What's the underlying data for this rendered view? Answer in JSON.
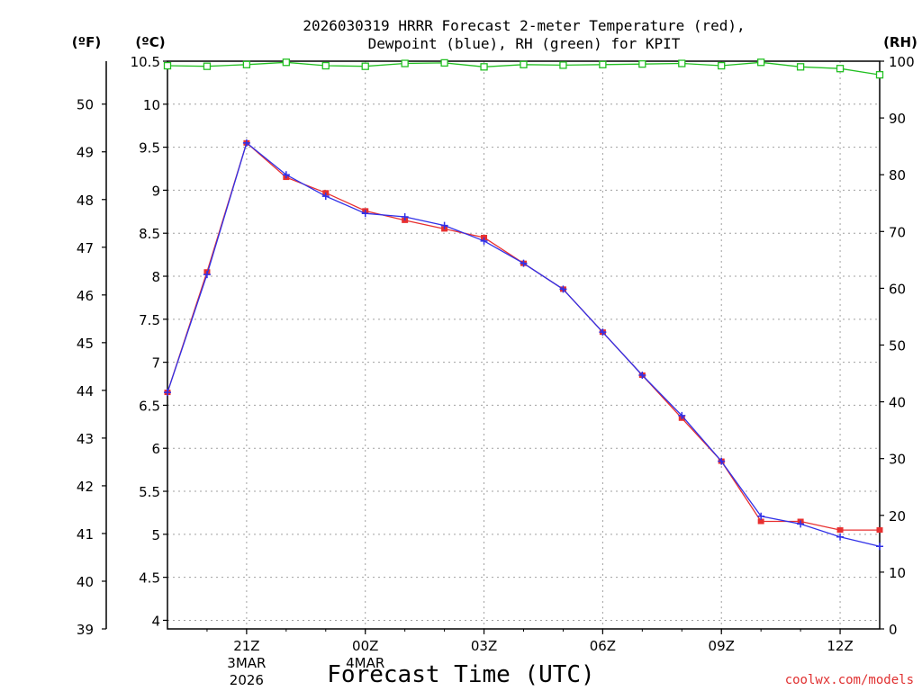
{
  "chart_data": {
    "type": "line",
    "title_line1": "2026030319 HRRR Forecast 2-meter Temperature (red),",
    "title_line2": "Dewpoint (blue), RH (green) for KPIT",
    "xlabel": "Forecast Time (UTC)",
    "credit": "coolwx.com/models",
    "left_unit_f": "(ºF)",
    "left_unit_c": "(ºC)",
    "right_unit": "(RH)",
    "ylim_c": [
      3.9,
      10.5
    ],
    "ylim_f": [
      39,
      50.9
    ],
    "ylim_rh": [
      0,
      100
    ],
    "grid": true,
    "yticks_c": [
      {
        "v": 4,
        "label": "4"
      },
      {
        "v": 4.5,
        "label": "4.5"
      },
      {
        "v": 5,
        "label": "5"
      },
      {
        "v": 5.5,
        "label": "5.5"
      },
      {
        "v": 6,
        "label": "6"
      },
      {
        "v": 6.5,
        "label": "6.5"
      },
      {
        "v": 7,
        "label": "7"
      },
      {
        "v": 7.5,
        "label": "7.5"
      },
      {
        "v": 8,
        "label": "8"
      },
      {
        "v": 8.5,
        "label": "8.5"
      },
      {
        "v": 9,
        "label": "9"
      },
      {
        "v": 9.5,
        "label": "9.5"
      },
      {
        "v": 10,
        "label": "10"
      },
      {
        "v": 10.5,
        "label": "10.5"
      }
    ],
    "yticks_f": [
      {
        "v": 39,
        "label": "39"
      },
      {
        "v": 40,
        "label": "40"
      },
      {
        "v": 41,
        "label": "41"
      },
      {
        "v": 42,
        "label": "42"
      },
      {
        "v": 43,
        "label": "43"
      },
      {
        "v": 44,
        "label": "44"
      },
      {
        "v": 45,
        "label": "45"
      },
      {
        "v": 46,
        "label": "46"
      },
      {
        "v": 47,
        "label": "47"
      },
      {
        "v": 48,
        "label": "48"
      },
      {
        "v": 49,
        "label": "49"
      },
      {
        "v": 50,
        "label": "50"
      }
    ],
    "yticks_rh": [
      {
        "v": 0,
        "label": "0"
      },
      {
        "v": 10,
        "label": "10"
      },
      {
        "v": 20,
        "label": "20"
      },
      {
        "v": 30,
        "label": "30"
      },
      {
        "v": 40,
        "label": "40"
      },
      {
        "v": 50,
        "label": "50"
      },
      {
        "v": 60,
        "label": "60"
      },
      {
        "v": 70,
        "label": "70"
      },
      {
        "v": 80,
        "label": "80"
      },
      {
        "v": 90,
        "label": "90"
      },
      {
        "v": 100,
        "label": "100"
      }
    ],
    "xlim": [
      0,
      18
    ],
    "xticks": [
      {
        "x": 2,
        "label": "21Z",
        "sub1": "3MAR",
        "sub2": "2026"
      },
      {
        "x": 5,
        "label": "00Z",
        "sub1": "4MAR",
        "sub2": ""
      },
      {
        "x": 8,
        "label": "03Z",
        "sub1": "",
        "sub2": ""
      },
      {
        "x": 11,
        "label": "06Z",
        "sub1": "",
        "sub2": ""
      },
      {
        "x": 14,
        "label": "09Z",
        "sub1": "",
        "sub2": ""
      },
      {
        "x": 17,
        "label": "12Z",
        "sub1": "",
        "sub2": ""
      }
    ],
    "series": [
      {
        "name": "Temperature (red)",
        "color": "#e83030",
        "axis": "c",
        "x": [
          0,
          1,
          2,
          3,
          4,
          5,
          6,
          7,
          8,
          9,
          10,
          11,
          12,
          13,
          14,
          15,
          16,
          17,
          18
        ],
        "values": [
          6.65,
          8.05,
          9.55,
          9.15,
          8.97,
          8.76,
          8.65,
          8.55,
          8.45,
          8.15,
          7.85,
          7.35,
          6.85,
          6.35,
          5.85,
          5.15,
          5.15,
          5.05,
          5.05
        ]
      },
      {
        "name": "Dewpoint (blue)",
        "color": "#3030e8",
        "axis": "c",
        "x": [
          0,
          1,
          2,
          3,
          4,
          5,
          6,
          7,
          8,
          9,
          10,
          11,
          12,
          13,
          14,
          15,
          16,
          17,
          18
        ],
        "values": [
          6.65,
          8.02,
          9.55,
          9.18,
          8.93,
          8.73,
          8.69,
          8.59,
          8.41,
          8.15,
          7.85,
          7.35,
          6.85,
          6.38,
          5.85,
          5.21,
          5.12,
          4.97,
          4.86
        ]
      },
      {
        "name": "RH (green)",
        "color": "#22c022",
        "axis": "rh",
        "x": [
          0,
          1,
          2,
          3,
          4,
          5,
          6,
          7,
          8,
          9,
          10,
          11,
          12,
          13,
          14,
          15,
          16,
          17,
          18
        ],
        "values": [
          99.2,
          99.1,
          99.4,
          99.8,
          99.2,
          99.1,
          99.6,
          99.7,
          99.0,
          99.4,
          99.3,
          99.4,
          99.5,
          99.6,
          99.2,
          99.8,
          99.0,
          98.7,
          97.6
        ]
      }
    ]
  }
}
